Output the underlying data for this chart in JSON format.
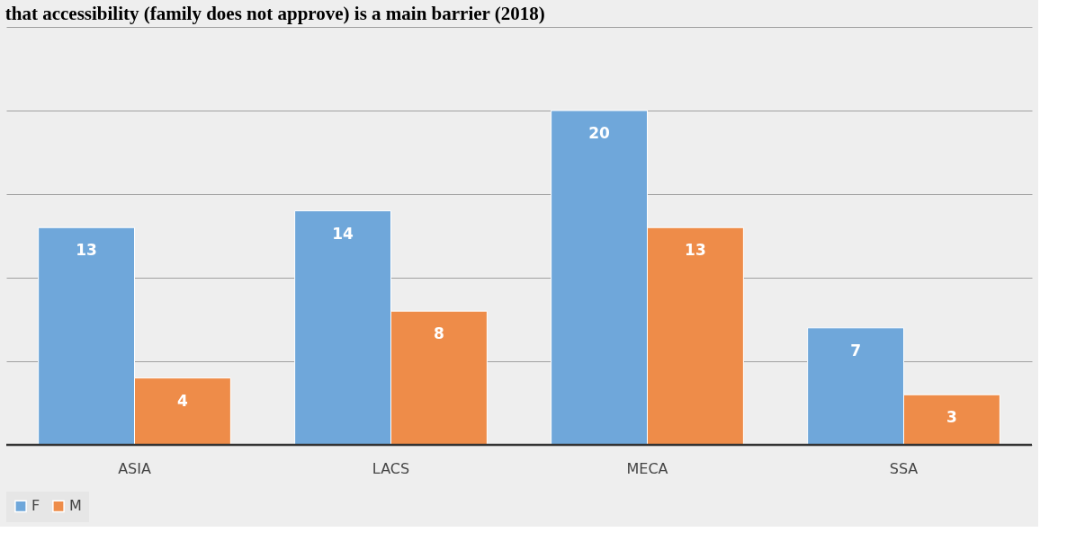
{
  "chart_data": {
    "type": "bar",
    "title": "that accessibility (family does not approve) is a main barrier (2018)",
    "categories": [
      "ASIA",
      "LACS",
      "MECA",
      "SSA"
    ],
    "series": [
      {
        "name": "F",
        "color": "#6fa7da",
        "values": [
          13,
          14,
          20,
          7
        ]
      },
      {
        "name": "M",
        "color": "#ee8c49",
        "values": [
          4,
          8,
          13,
          3
        ]
      }
    ],
    "ylim": [
      0,
      25
    ],
    "yticks": [
      {
        "value": 0,
        "label": null
      },
      {
        "value": 5,
        "label": null
      },
      {
        "value": 10,
        "label": null
      },
      {
        "value": 15,
        "label": null
      },
      {
        "value": 20,
        "label": null
      },
      {
        "value": 25,
        "label": null
      }
    ],
    "tick_labels": "x",
    "grid": "y",
    "legend": "bottom",
    "data_labels": true
  }
}
